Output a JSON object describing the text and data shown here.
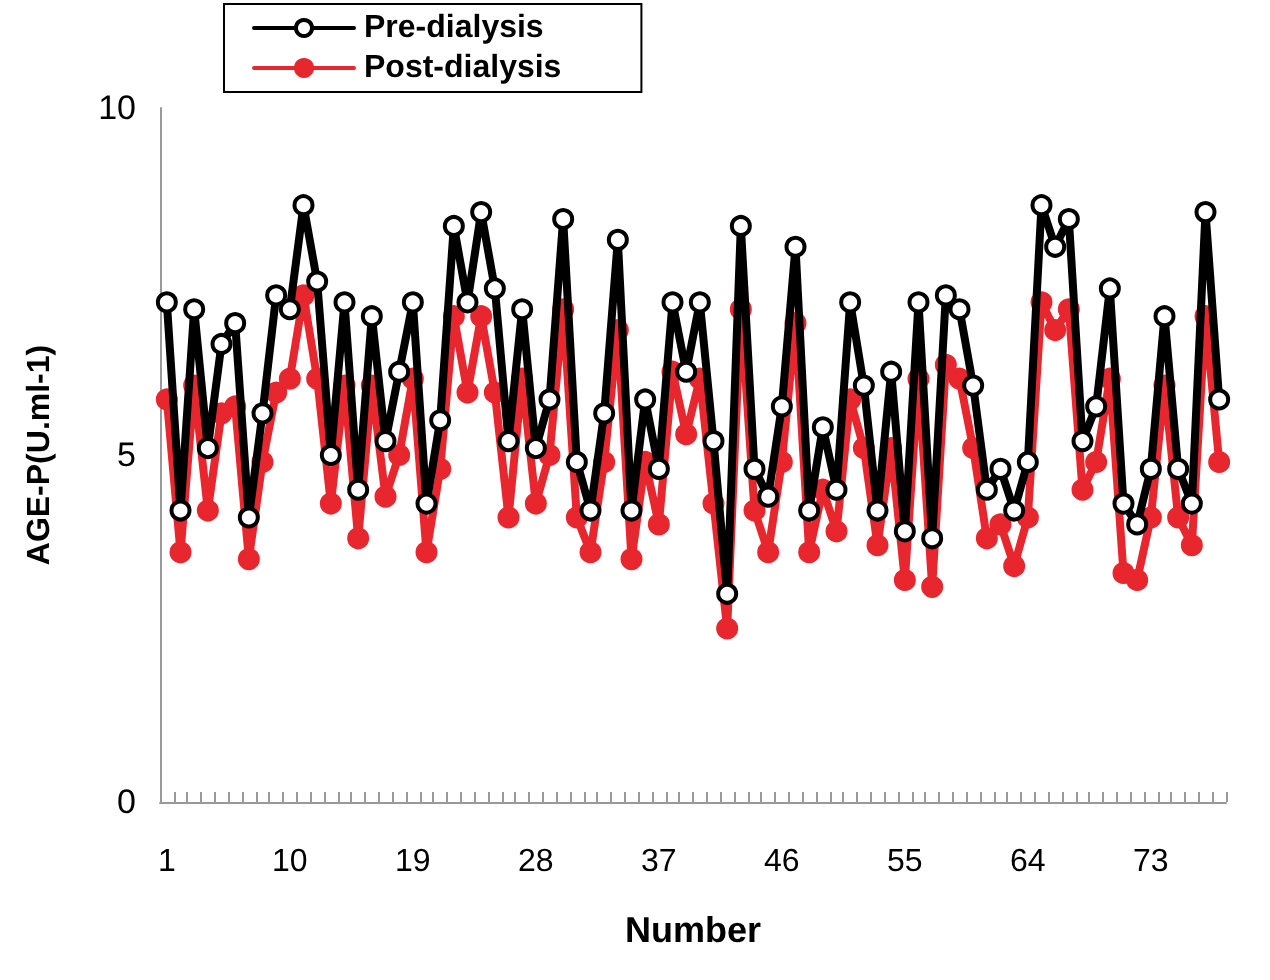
{
  "chart_data": {
    "type": "line",
    "xlabel": "Number",
    "ylabel": "AGE-P(U.ml-1)",
    "categories": [
      "1",
      null,
      null,
      null,
      null,
      null,
      null,
      null,
      null,
      "10",
      null,
      null,
      null,
      null,
      null,
      null,
      null,
      null,
      "19",
      null,
      null,
      null,
      null,
      null,
      null,
      null,
      null,
      "28",
      null,
      null,
      null,
      null,
      null,
      null,
      null,
      null,
      "37",
      null,
      null,
      null,
      null,
      null,
      null,
      null,
      null,
      "46",
      null,
      null,
      null,
      null,
      null,
      null,
      null,
      null,
      "55",
      null,
      null,
      null,
      null,
      null,
      null,
      null,
      null,
      "64",
      null,
      null,
      null,
      null,
      null,
      null,
      null,
      null,
      "73",
      null,
      null,
      null,
      null,
      null
    ],
    "series": [
      {
        "name": "Pre-dialysis",
        "color": "#000000",
        "values": [
          7.2,
          4.2,
          7.1,
          5.1,
          6.6,
          6.9,
          4.1,
          5.6,
          7.3,
          7.1,
          8.6,
          7.5,
          5.0,
          7.2,
          4.5,
          7.0,
          5.2,
          6.2,
          7.2,
          4.3,
          5.5,
          8.3,
          7.2,
          8.5,
          7.4,
          5.2,
          7.1,
          5.1,
          5.8,
          8.4,
          4.9,
          4.2,
          5.6,
          8.1,
          4.2,
          5.8,
          4.8,
          7.2,
          6.2,
          7.2,
          5.2,
          3.0,
          8.3,
          4.8,
          4.4,
          5.7,
          8.0,
          4.2,
          5.4,
          4.5,
          7.2,
          6.0,
          4.2,
          6.2,
          3.9,
          7.2,
          3.8,
          7.3,
          7.1,
          6.0,
          4.5,
          4.8,
          4.2,
          4.9,
          8.6,
          8.0,
          8.4,
          5.2,
          5.7,
          7.4,
          4.3,
          4.0,
          4.8,
          7.0,
          4.8,
          4.3,
          8.5,
          5.8
        ]
      },
      {
        "name": "Post-dialysis",
        "color": "#e8262e",
        "values": [
          5.8,
          3.6,
          6.0,
          4.2,
          5.6,
          5.7,
          3.5,
          4.9,
          5.9,
          6.1,
          7.3,
          6.1,
          4.3,
          6.0,
          3.8,
          6.0,
          4.4,
          5.0,
          6.1,
          3.6,
          4.8,
          7.0,
          5.9,
          7.0,
          5.9,
          4.1,
          6.1,
          4.3,
          5.0,
          7.1,
          4.1,
          3.6,
          4.9,
          6.8,
          3.5,
          4.9,
          4.0,
          6.2,
          5.3,
          6.1,
          4.3,
          2.5,
          7.1,
          4.2,
          3.6,
          4.9,
          6.9,
          3.6,
          4.5,
          3.9,
          5.8,
          5.1,
          3.7,
          5.1,
          3.2,
          6.1,
          3.1,
          6.3,
          6.1,
          5.1,
          3.8,
          4.0,
          3.4,
          4.1,
          7.2,
          6.8,
          7.1,
          4.5,
          4.9,
          6.1,
          3.3,
          3.2,
          4.1,
          6.0,
          4.1,
          3.7,
          7.0,
          4.9
        ]
      }
    ],
    "ylim": [
      0,
      10
    ],
    "yticks": [
      0,
      5,
      10
    ],
    "grid": false,
    "legend": "top left",
    "marker": "circle",
    "line_style": "solid"
  }
}
